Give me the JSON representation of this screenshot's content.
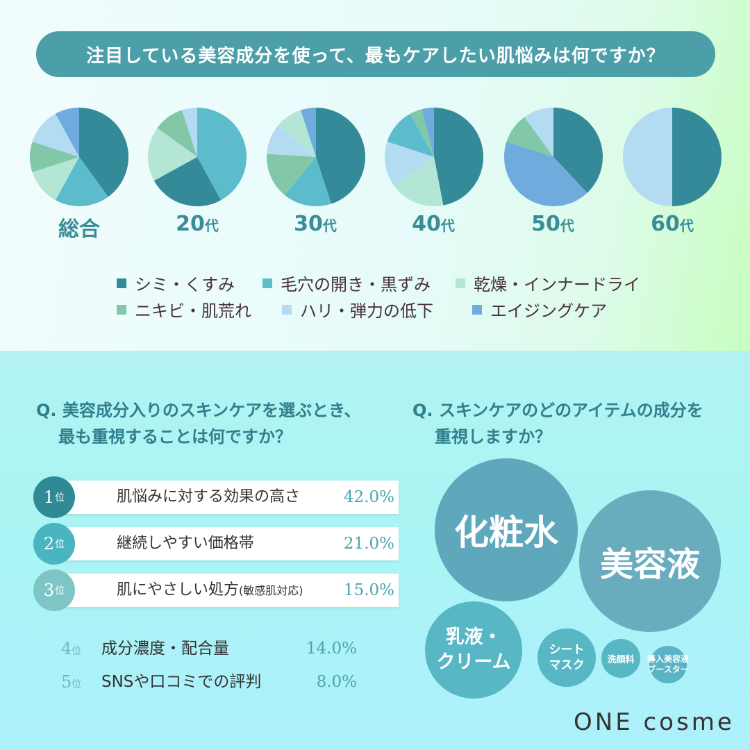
{
  "title": "注目している美容成分を使って、最もケアしたい肌悩みは何ですか？",
  "pie_labels": [
    {
      "main": "総合",
      "suffix": ""
    },
    {
      "main": "20",
      "suffix": "代"
    },
    {
      "main": "30",
      "suffix": "代"
    },
    {
      "main": "40",
      "suffix": "代"
    },
    {
      "main": "50",
      "suffix": "代"
    },
    {
      "main": "60",
      "suffix": "代"
    }
  ],
  "legend": [
    {
      "label": "シミ・くすみ",
      "color": "#358a99"
    },
    {
      "label": "毛穴の開き・黒ずみ",
      "color": "#5dbccb"
    },
    {
      "label": "乾燥・インナードライ",
      "color": "#b4e6d6"
    },
    {
      "label": "ニキビ・肌荒れ",
      "color": "#82c8a8"
    },
    {
      "label": "ハリ・弾力の低下",
      "color": "#b3dcf3"
    },
    {
      "label": "エイジングケア",
      "color": "#6fabdc"
    }
  ],
  "chart_data": [
    {
      "type": "pie",
      "title": "総合",
      "categories": [
        "シミ・くすみ",
        "毛穴の開き・黒ずみ",
        "乾燥・インナードライ",
        "ニキビ・肌荒れ",
        "ハリ・弾力の低下",
        "エイジングケア"
      ],
      "values": [
        40,
        18,
        12,
        10,
        12,
        8
      ]
    },
    {
      "type": "pie",
      "title": "20代",
      "categories": [
        "毛穴の開き・黒ずみ",
        "シミ・くすみ",
        "乾燥・インナードライ",
        "ニキビ・肌荒れ",
        "ハリ・弾力の低下"
      ],
      "values": [
        42,
        25,
        18,
        10,
        5
      ]
    },
    {
      "type": "pie",
      "title": "30代",
      "categories": [
        "シミ・くすみ",
        "毛穴の開き・黒ずみ",
        "ニキビ・肌荒れ",
        "ハリ・弾力の低下",
        "乾燥・インナードライ",
        "エイジングケア"
      ],
      "values": [
        45,
        16,
        15,
        10,
        9,
        5
      ]
    },
    {
      "type": "pie",
      "title": "40代",
      "categories": [
        "シミ・くすみ",
        "乾燥・インナードライ",
        "ハリ・弾力の低下",
        "毛穴の開き・黒ずみ",
        "ニキビ・肌荒れ",
        "エイジングケア"
      ],
      "values": [
        47,
        18,
        15,
        12,
        4,
        4
      ]
    },
    {
      "type": "pie",
      "title": "50代",
      "categories": [
        "シミ・くすみ",
        "エイジングケア",
        "ニキビ・肌荒れ",
        "ハリ・弾力の低下"
      ],
      "values": [
        38,
        42,
        10,
        10
      ]
    },
    {
      "type": "pie",
      "title": "60代",
      "categories": [
        "シミ・くすみ",
        "ハリ・弾力の低下"
      ],
      "values": [
        50,
        50
      ]
    }
  ],
  "slice_colors": {
    "シミ・くすみ": "#358a99",
    "毛穴の開き・黒ずみ": "#5dbccb",
    "乾燥・インナードライ": "#b4e6d6",
    "ニキビ・肌荒れ": "#82c8a8",
    "ハリ・弾力の低下": "#b3dcf3",
    "エイジングケア": "#6fabdc"
  },
  "q1": {
    "line1": "Q. 美容成分入りのスキンケアを選ぶとき、",
    "line2": "最も重視することは何ですか？",
    "ranks": [
      {
        "num": "1",
        "unit": "位",
        "label": "肌悩みに対する効果の高さ",
        "note": "",
        "value": "42.0%",
        "color": "#2f8a95"
      },
      {
        "num": "2",
        "unit": "位",
        "label": "継続しやすい価格帯",
        "note": "",
        "value": "21.0%",
        "color": "#49b5c0"
      },
      {
        "num": "3",
        "unit": "位",
        "label": "肌にやさしい処方",
        "note": "(敏感肌対応)",
        "value": "15.0%",
        "color": "#7fc5c6"
      }
    ],
    "minor": [
      {
        "num": "4",
        "unit": "位",
        "label": "成分濃度・配合量",
        "value": "14.0%"
      },
      {
        "num": "5",
        "unit": "位",
        "label": "SNSや口コミでの評判",
        "value": "8.0%"
      }
    ]
  },
  "q2": {
    "line1": "Q. スキンケアのどのアイテムの成分を",
    "line2": "重視しますか？",
    "bubbles": {
      "toner": "化粧水",
      "serum": "美容液",
      "emulsion_line1": "乳液・",
      "emulsion_line2": "クリーム",
      "mask_line1": "シート",
      "mask_line2": "マスク",
      "cleanser": "洗顔料",
      "booster_line1": "導入美容液",
      "booster_line2": "ブースター"
    }
  },
  "logo": "ONE cosme"
}
